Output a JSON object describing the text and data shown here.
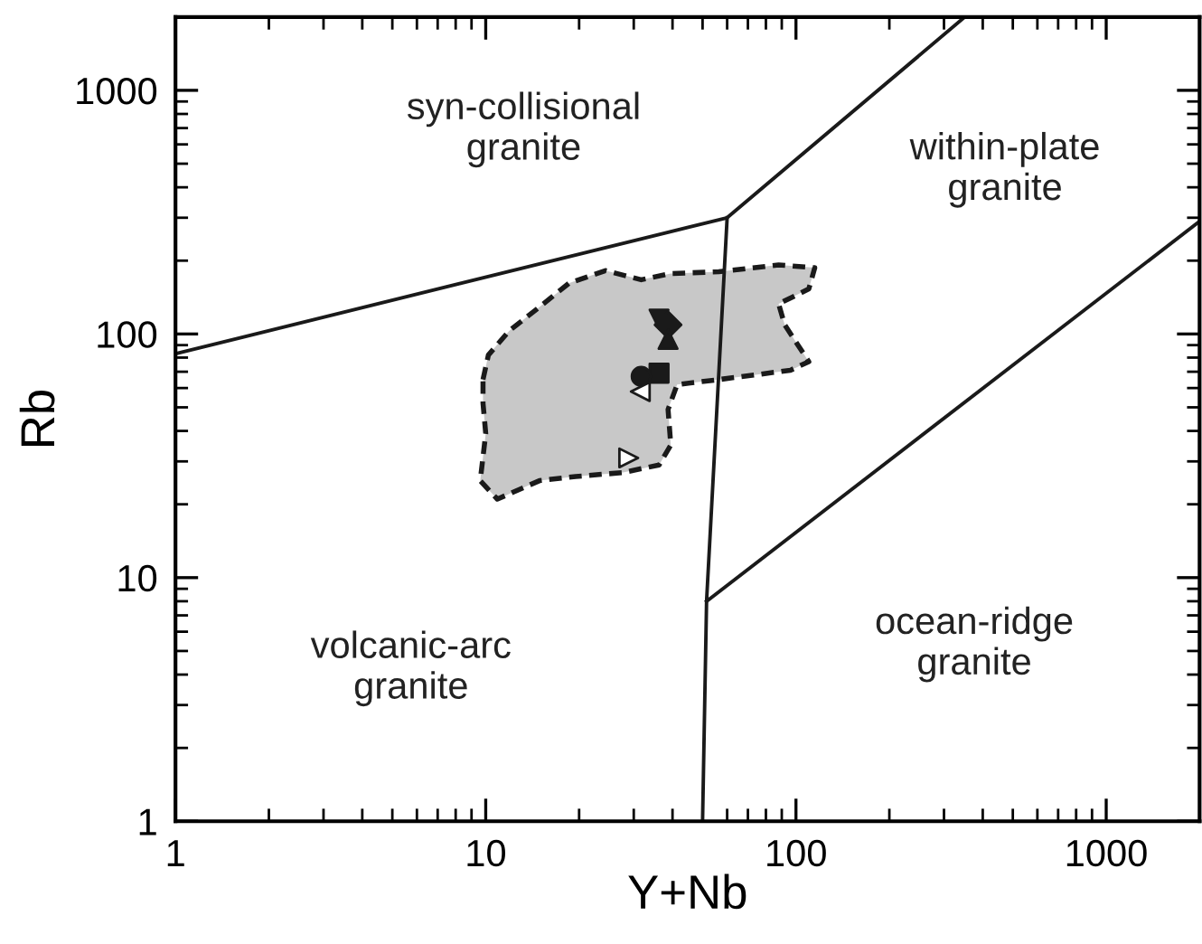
{
  "chart_data": {
    "type": "scatter",
    "xlabel": "Y+Nb",
    "ylabel": "Rb",
    "log": "xy",
    "grid": false,
    "xlim": [
      1,
      2000
    ],
    "ylim": [
      1,
      2000
    ],
    "xticks": [
      1,
      10,
      100,
      1000
    ],
    "yticks": [
      1,
      10,
      100,
      1000
    ],
    "series": [
      {
        "type": "area",
        "color": "#c8c8c8",
        "line_style": "dashed",
        "x": [
          9.8,
          10.2,
          11.9,
          14.9,
          18.6,
          24.3,
          31.7,
          39.5,
          56.4,
          87.9,
          115,
          110,
          87.9,
          92,
          110,
          96,
          56.4,
          41.4,
          38.7,
          39.5,
          36.2,
          27.7,
          19.5,
          14.9,
          10.9,
          9.6,
          10.0,
          9.8
        ],
        "values": [
          65,
          82,
          103,
          129,
          162,
          182,
          167,
          177,
          180,
          192,
          187,
          153,
          133,
          109,
          77,
          71,
          65,
          62,
          49,
          35,
          29,
          27,
          26,
          25,
          21,
          25,
          39,
          52
        ]
      },
      {
        "type": "line",
        "color": "#1a1a1a",
        "line_style": "solid",
        "x": [
          1,
          60,
          350
        ],
        "values": [
          83,
          300,
          2000
        ]
      },
      {
        "type": "line",
        "color": "#1a1a1a",
        "line_style": "solid",
        "x": [
          60,
          51.5,
          50
        ],
        "values": [
          300,
          8,
          1
        ]
      },
      {
        "type": "line",
        "color": "#1a1a1a",
        "line_style": "solid",
        "x": [
          51.5,
          2000
        ],
        "values": [
          8,
          290
        ]
      },
      {
        "marker": "square",
        "color": "#1a1a1a",
        "x": [
          36.2
        ],
        "values": [
          69
        ]
      },
      {
        "marker": "circle",
        "color": "#1a1a1a",
        "x": [
          31.7
        ],
        "values": [
          67
        ]
      },
      {
        "marker": "triangle-left",
        "color": "#ffffff",
        "x": [
          31.5
        ],
        "values": [
          58
        ]
      },
      {
        "marker": "triangle-right",
        "color": "#ffffff",
        "x": [
          28.9
        ],
        "values": [
          31
        ]
      },
      {
        "marker": "triangle-down",
        "color": "#1a1a1a",
        "x": [
          36.2
        ],
        "values": [
          115
        ]
      },
      {
        "marker": "diamond",
        "color": "#1a1a1a",
        "x": [
          38.7
        ],
        "values": [
          109
        ]
      },
      {
        "marker": "triangle",
        "color": "#1a1a1a",
        "x": [
          38.7
        ],
        "values": [
          95
        ]
      }
    ],
    "annotations": [
      "syn-collisional\ngranite",
      "within-plate\ngranite",
      "volcanic-arc\ngranite",
      "ocean-ridge\ngranite"
    ]
  }
}
